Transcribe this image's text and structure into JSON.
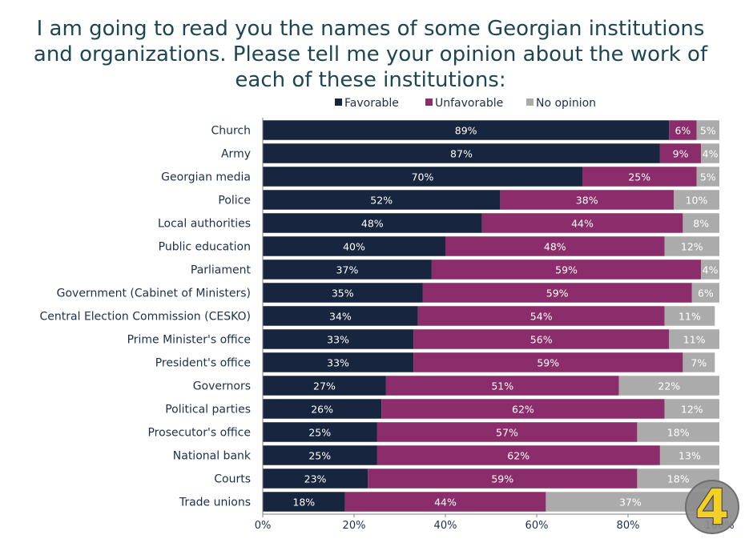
{
  "title_lines": [
    "I am going to read you the names of some Georgian institutions",
    "and organizations. Please tell me your opinion about the work of",
    "each of these institutions:"
  ],
  "logo_text": "4",
  "colors": {
    "favorable": "#17253f",
    "unfavorable": "#8a2d6a",
    "no_opinion": "#ababab",
    "title": "#1c4654",
    "logo_circle": "#8c8c8c",
    "logo_digit": "#f2d024"
  },
  "chart_data": {
    "type": "bar",
    "orientation": "horizontal",
    "stacked": true,
    "categories": [
      "Church",
      "Army",
      "Georgian media",
      "Police",
      "Local authorities",
      "Public education",
      "Parliament",
      "Government (Cabinet of Ministers)",
      "Central Election Commission (CESKO)",
      "Prime Minister's office",
      "President's office",
      "Governors",
      "Political parties",
      "Prosecutor's office",
      "National bank",
      "Courts",
      "Trade unions"
    ],
    "series": [
      {
        "name": "Favorable",
        "values": [
          89,
          87,
          70,
          52,
          48,
          40,
          37,
          35,
          34,
          33,
          33,
          27,
          26,
          25,
          25,
          23,
          18
        ]
      },
      {
        "name": "Unfavorable",
        "values": [
          6,
          9,
          25,
          38,
          44,
          48,
          59,
          59,
          54,
          56,
          59,
          51,
          62,
          57,
          62,
          59,
          44
        ]
      },
      {
        "name": "No opinion",
        "values": [
          5,
          4,
          5,
          10,
          8,
          12,
          4,
          6,
          11,
          11,
          7,
          22,
          12,
          18,
          13,
          18,
          37
        ]
      }
    ],
    "value_suffix": "%",
    "xlim": [
      0,
      100
    ],
    "xticks": [
      "0%",
      "20%",
      "40%",
      "60%",
      "80%",
      "100%"
    ],
    "legend_position": "top",
    "grid": false
  }
}
